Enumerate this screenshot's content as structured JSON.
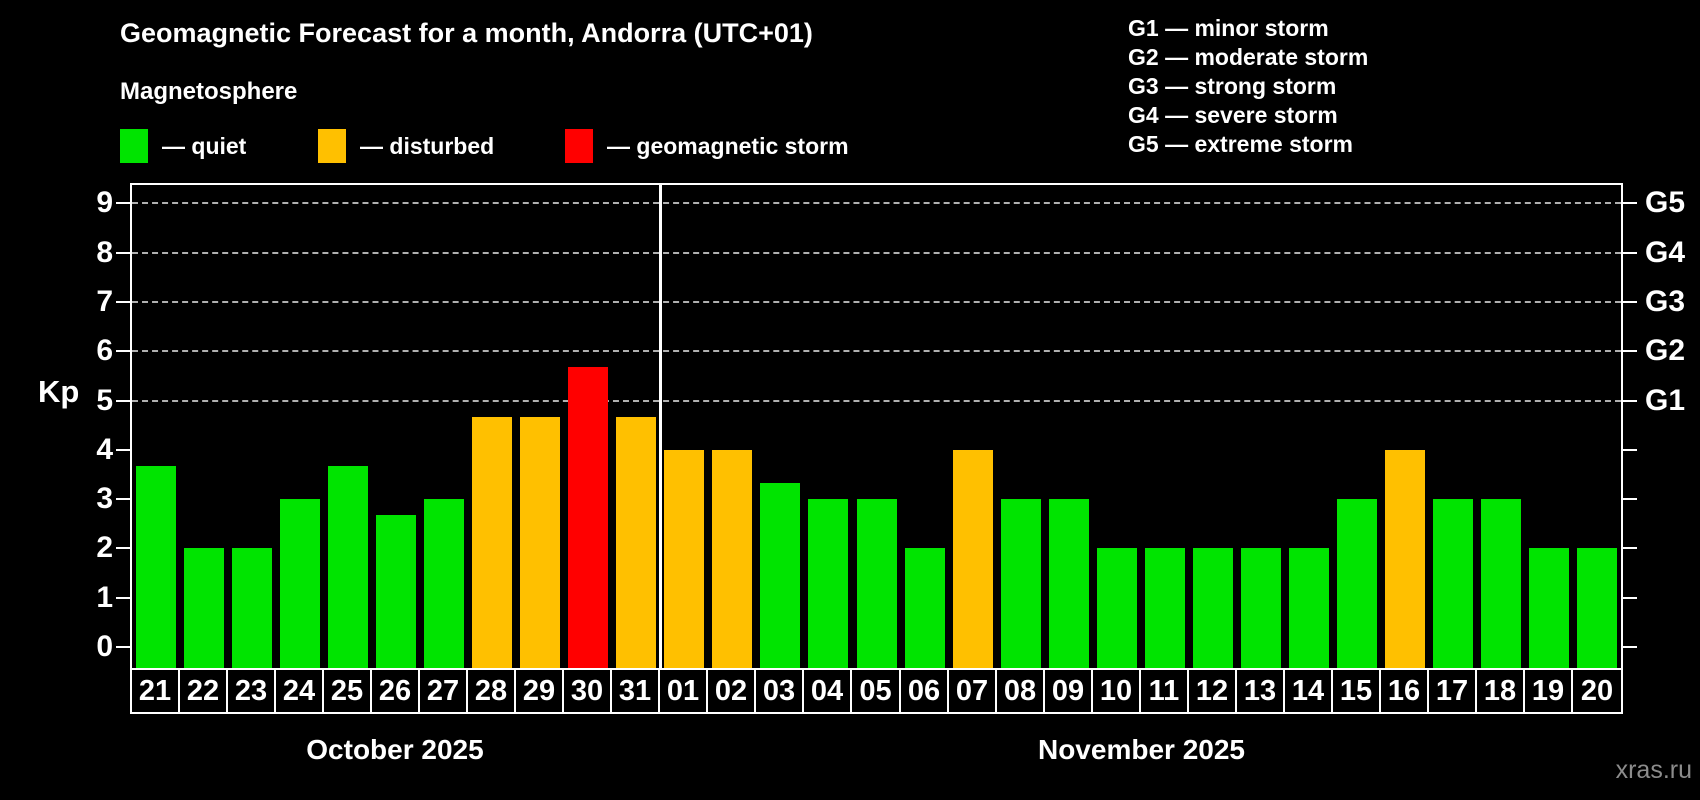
{
  "chart_data": {
    "type": "bar",
    "title": "Geomagnetic Forecast for a month, Andorra (UTC+01)",
    "subtitle": "Magnetosphere",
    "ylabel": "Kp",
    "ylim": [
      -0.4,
      9.45
    ],
    "y_ticks": [
      0,
      1,
      2,
      3,
      4,
      5,
      6,
      7,
      8,
      9
    ],
    "gridlines_at": [
      5,
      6,
      7,
      8,
      9
    ],
    "right_axis_labels": [
      {
        "kp": 5,
        "text": "G1"
      },
      {
        "kp": 6,
        "text": "G2"
      },
      {
        "kp": 7,
        "text": "G3"
      },
      {
        "kp": 8,
        "text": "G4"
      },
      {
        "kp": 9,
        "text": "G5"
      }
    ],
    "legend": [
      {
        "state": "quiet",
        "label": "— quiet",
        "color": "#00e400"
      },
      {
        "state": "disturbed",
        "label": "— disturbed",
        "color": "#ffc000"
      },
      {
        "state": "storm",
        "label": "— geomagnetic storm",
        "color": "#ff0000"
      }
    ],
    "g_scale_legend": [
      "G1 — minor storm",
      "G2 — moderate storm",
      "G3 — strong storm",
      "G4 — severe storm",
      "G5 — extreme storm"
    ],
    "categories": [
      "21",
      "22",
      "23",
      "24",
      "25",
      "26",
      "27",
      "28",
      "29",
      "30",
      "31",
      "01",
      "02",
      "03",
      "04",
      "05",
      "06",
      "07",
      "08",
      "09",
      "10",
      "11",
      "12",
      "13",
      "14",
      "15",
      "16",
      "17",
      "18",
      "19",
      "20"
    ],
    "values": [
      3.67,
      2,
      2,
      3,
      3.67,
      2.67,
      3,
      4.67,
      4.67,
      5.67,
      4.67,
      4,
      4,
      3.33,
      3,
      3,
      2,
      4,
      3,
      3,
      2,
      2,
      2,
      2,
      2,
      3,
      4,
      3,
      3,
      2,
      2
    ],
    "states": [
      "quiet",
      "quiet",
      "quiet",
      "quiet",
      "quiet",
      "quiet",
      "quiet",
      "disturbed",
      "disturbed",
      "storm",
      "disturbed",
      "disturbed",
      "disturbed",
      "quiet",
      "quiet",
      "quiet",
      "quiet",
      "disturbed",
      "quiet",
      "quiet",
      "quiet",
      "quiet",
      "quiet",
      "quiet",
      "quiet",
      "quiet",
      "disturbed",
      "quiet",
      "quiet",
      "quiet",
      "quiet"
    ],
    "month_split_index": 11,
    "month_labels": [
      "October 2025",
      "November 2025"
    ],
    "grid": true,
    "legend_position": "top-left",
    "watermark": "xras.ru"
  }
}
